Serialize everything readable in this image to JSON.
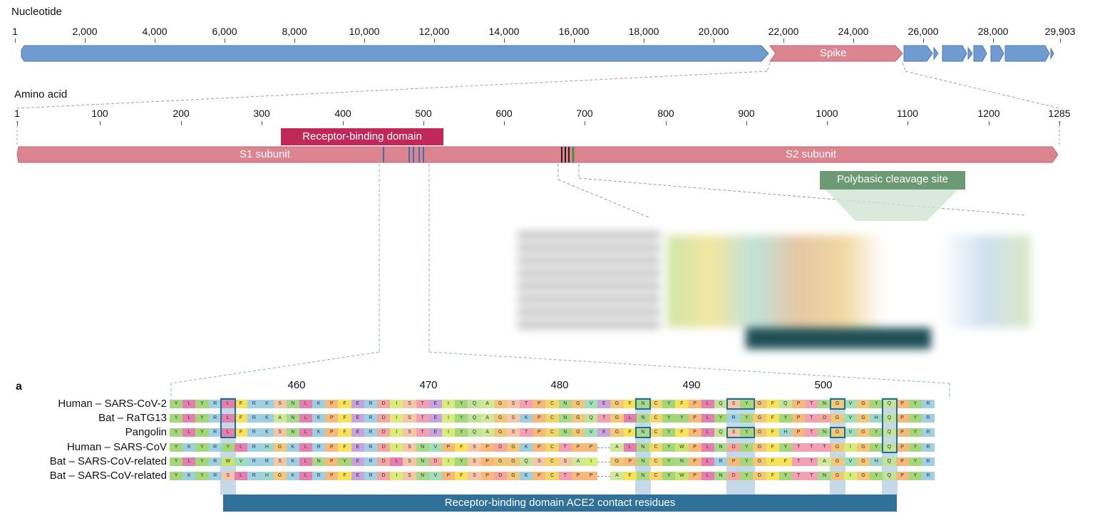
{
  "nucleotide": {
    "title": "Nucleotide",
    "ticks": [
      "1",
      "2,000",
      "4,000",
      "6,000",
      "8,000",
      "10,000",
      "12,000",
      "14,000",
      "16,000",
      "18,000",
      "20,000",
      "22,000",
      "24,000",
      "26,000",
      "28,000",
      "29,903"
    ],
    "spike_label": "Spike"
  },
  "amino_acid": {
    "title": "Amino acid",
    "ticks": [
      "1",
      "100",
      "200",
      "300",
      "400",
      "500",
      "600",
      "700",
      "800",
      "900",
      "1000",
      "1100",
      "1200",
      "1285"
    ],
    "s1_label": "S1 subunit",
    "s2_label": "S2 subunit",
    "rbd_tag": "Receptor-binding domain",
    "cleavage_tag": "Polybasic cleavage site"
  },
  "alignment": {
    "panel_letter": "a",
    "positions": [
      "460",
      "470",
      "480",
      "490",
      "500"
    ],
    "species": [
      "Human – SARS-CoV-2",
      "Bat – RaTG13",
      "Pangolin",
      "Human – SARS-CoV",
      "Bat – SARS-CoV-related",
      "Bat – SARS-CoV-related"
    ],
    "sequences": [
      "YLYRLFRKSNLKPFERDISTEIYQAGSTPCNGVEGFNCYFPLQSYGFQPTNGVGYQPYR",
      "YLYRLFRKANLKPFERDISTEIYQAGSKPCNGQTGLNCYYPLYRYGFYPTDGVGHQPYR",
      "YLYRLFRKSNLKPFERDISTEIYQAGSTPCNGVEGFNCYFPLQSYGFHPTNGVGYQPYR",
      "YKYRYLRHGKLRPFERDISNVPFSPDGKPCTPP-ALNCYWPLNDYGFYTTTGIGYQPYR",
      "YLYRWVRRSKLNPYERDLSNDIYSPGGQSCSAI-GPNCYNPLRPYGFFTTAGVGHQPYR",
      "YKYRSLRHGKLRPFERDISNVPFSPDGKPCTPP-AFNCYWPLNDYGFYTTNGIGYQPYR"
    ],
    "contact_label": "Receptor-binding domain ACE2 contact residues"
  },
  "colors": {
    "genome_blue": "#6f9bd1",
    "spike_pink": "#dc8590",
    "rbd_red": "#c0285a",
    "cleavage_green": "#6b9a74",
    "contact_blue": "#2f7198"
  }
}
